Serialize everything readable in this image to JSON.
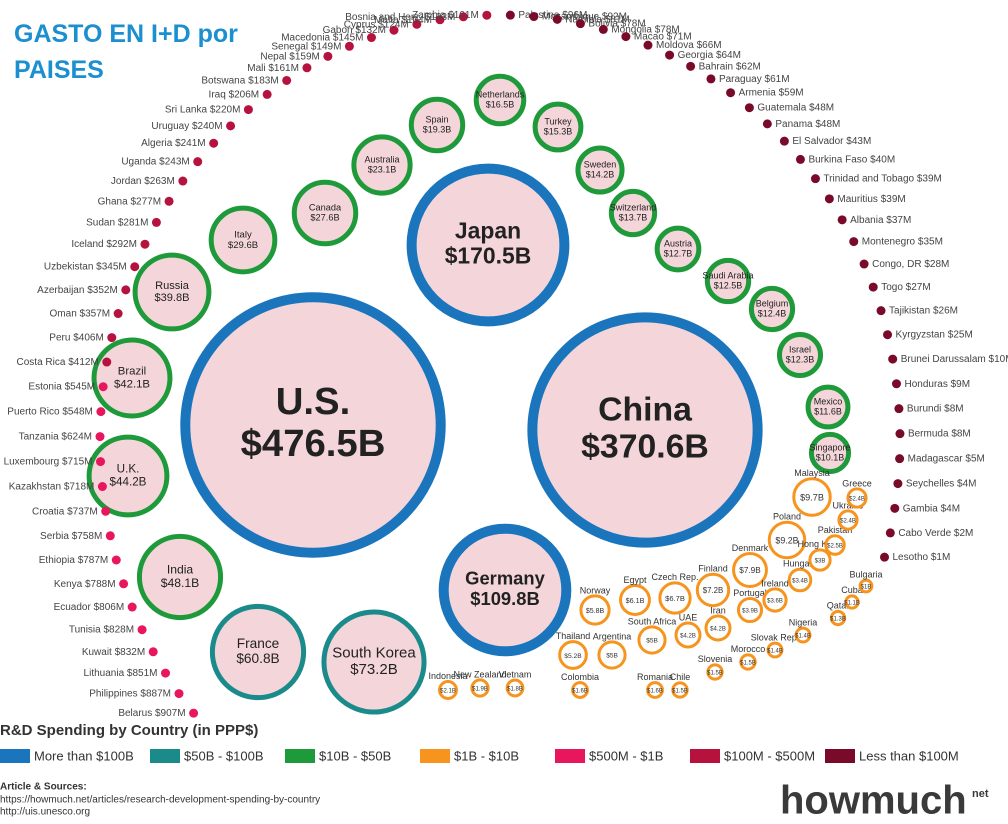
{
  "header": {
    "title": "GASTO EN I+D por PAISES"
  },
  "chart_data": {
    "type": "bubble",
    "title": "R&D Spending by Country (in PPP$)",
    "series": [
      {
        "name": "More than $100B",
        "color": "#1b75bc",
        "categories": [
          "U.S.",
          "China",
          "Japan",
          "Germany"
        ],
        "values": [
          476500,
          370600,
          170500,
          109800
        ],
        "value_labels": [
          "$476.5B",
          "$370.6B",
          "$170.5B",
          "$109.8B"
        ]
      },
      {
        "name": "$50B - $100B",
        "color": "#1a8a8a",
        "categories": [
          "South Korea",
          "France"
        ],
        "values": [
          73200,
          60800
        ],
        "value_labels": [
          "$73.2B",
          "$60.8B"
        ]
      },
      {
        "name": "$10B - $50B",
        "color": "#1f9a3a",
        "categories": [
          "India",
          "U.K.",
          "Brazil",
          "Russia",
          "Italy",
          "Canada",
          "Australia",
          "Spain",
          "Netherlands",
          "Turkey",
          "Sweden",
          "Switzerland",
          "Austria",
          "Saudi Arabia",
          "Belgium",
          "Israel",
          "Mexico",
          "Singapore"
        ],
        "values": [
          48100,
          44200,
          42100,
          39800,
          29600,
          27600,
          23100,
          19300,
          16500,
          15300,
          14200,
          13700,
          12700,
          12500,
          12400,
          12300,
          11600,
          10100
        ],
        "value_labels": [
          "$48.1B",
          "$44.2B",
          "$42.1B",
          "$39.8B",
          "$29.6B",
          "$27.6B",
          "$23.1B",
          "$19.3B",
          "$16.5B",
          "$15.3B",
          "$14.2B",
          "$13.7B",
          "$12.7B",
          "$12.5B",
          "$12.4B",
          "$12.3B",
          "$11.6B",
          "$10.1B"
        ]
      },
      {
        "name": "$1B - $10B",
        "color": "#f7941d",
        "categories": [
          "Malaysia",
          "Poland",
          "Denmark",
          "Finland",
          "Czech Rep.",
          "Egypt",
          "Norway",
          "Thailand",
          "Argentina",
          "South Africa",
          "UAE",
          "Iran",
          "Portugal",
          "Ireland",
          "Hungary",
          "Hong Kong",
          "Pakistan",
          "Ukraine",
          "Greece",
          "Indonesia",
          "New Zealand",
          "Vietnam",
          "Colombia",
          "Romania",
          "Chile",
          "Slovenia",
          "Morocco",
          "Slovak Rep.",
          "Nigeria",
          "Qatar",
          "Cuba",
          "Bulgaria"
        ],
        "values": [
          9700,
          9200,
          7900,
          7200,
          6700,
          6100,
          5800,
          5200,
          5000,
          5000,
          4200,
          4200,
          3900,
          3600,
          3400,
          3000,
          2500,
          2400,
          2400,
          2100,
          1900,
          1800,
          1600,
          1600,
          1500,
          1500,
          1500,
          1400,
          1400,
          1300,
          1100,
          1000
        ],
        "value_labels": [
          "$9.7B",
          "$9.2B",
          "$7.9B",
          "$7.2B",
          "$6.7B",
          "$6.1B",
          "$5.8B",
          "$5.2B",
          "$5B",
          "$5B",
          "$4.2B",
          "$4.2B",
          "$3.9B",
          "$3.6B",
          "$3.4B",
          "$3B",
          "$2.5B",
          "$2.4B",
          "$2.4B",
          "$2.1B",
          "$1.9B",
          "$1.8B",
          "$1.6B",
          "$1.6B",
          "$1.5B",
          "$1.5B",
          "$1.5B",
          "$1.4B",
          "$1.4B",
          "$1.3B",
          "$1.1B",
          "$1B"
        ]
      },
      {
        "name": "$500M - $1B",
        "color": "#e8175d",
        "categories": [
          "Belarus",
          "Philippines",
          "Lithuania",
          "Kuwait",
          "Tunisia",
          "Ecuador",
          "Kenya",
          "Ethiopia",
          "Serbia",
          "Croatia",
          "Kazakhstan",
          "Luxembourg",
          "Tanzania",
          "Puerto Rico",
          "Estonia"
        ],
        "values": [
          907,
          887,
          851,
          832,
          828,
          806,
          788,
          787,
          758,
          737,
          718,
          715,
          624,
          548,
          545
        ],
        "value_labels": [
          "$907M",
          "$887M",
          "$851M",
          "$832M",
          "$828M",
          "$806M",
          "$788M",
          "$787M",
          "$758M",
          "$737M",
          "$718M",
          "$715M",
          "$624M",
          "$548M",
          "$545M"
        ]
      },
      {
        "name": "$100M - $500M",
        "color": "#b5123e",
        "categories": [
          "Costa Rica",
          "Peru",
          "Oman",
          "Azerbaijan",
          "Uzbekistan",
          "Iceland",
          "Sudan",
          "Ghana",
          "Jordan",
          "Uganda",
          "Algeria",
          "Uruguay",
          "Sri Lanka",
          "Iraq",
          "Botswana",
          "Mali",
          "Nepal",
          "Senegal",
          "Macedonia",
          "Gabon",
          "Cyprus",
          "Malta",
          "Bosnia and Herz.",
          "Zambia"
        ],
        "values": [
          412,
          406,
          357,
          352,
          345,
          292,
          281,
          277,
          263,
          243,
          241,
          240,
          220,
          206,
          183,
          161,
          159,
          149,
          145,
          132,
          124,
          104,
          103,
          101
        ],
        "value_labels": [
          "$412M",
          "$406M",
          "$357M",
          "$352M",
          "$345M",
          "$292M",
          "$281M",
          "$277M",
          "$263M",
          "$243M",
          "$241M",
          "$240M",
          "$220M",
          "$206M",
          "$183M",
          "$161M",
          "$159M",
          "$149M",
          "$145M",
          "$132M",
          "$124M",
          "$104M",
          "$103M",
          "$101M"
        ]
      },
      {
        "name": "Less than $100M",
        "color": "#7a0a2a",
        "categories": [
          "Palestine",
          "Mozambique",
          "Namibia",
          "Bolivia",
          "Mongolia",
          "Macao",
          "Moldova",
          "Georgia",
          "Bahrain",
          "Paraguay",
          "Armenia",
          "Guatemala",
          "Panama",
          "El Salvador",
          "Burkina Faso",
          "Trinidad and Tobago",
          "Mauritius",
          "Albania",
          "Montenegro",
          "Congo, DR",
          "Togo",
          "Tajikistan",
          "Kyrgyzstan",
          "Brunei Darussalam",
          "Honduras",
          "Burundi",
          "Bermuda",
          "Madagascar",
          "Seychelles",
          "Gambia",
          "Cabo Verde",
          "Lesotho"
        ],
        "values": [
          96,
          92,
          81,
          78,
          78,
          71,
          66,
          64,
          62,
          61,
          59,
          48,
          48,
          43,
          40,
          39,
          39,
          37,
          35,
          28,
          27,
          26,
          25,
          10,
          9,
          8,
          8,
          5,
          4,
          4,
          2,
          1
        ],
        "value_labels": [
          "$96M",
          "$92M",
          "$81M",
          "$78M",
          "$78M",
          "$71M",
          "$66M",
          "$64M",
          "$62M",
          "$61M",
          "$59M",
          "$48M",
          "$48M",
          "$43M",
          "$40M",
          "$39M",
          "$39M",
          "$37M",
          "$35M",
          "$28M",
          "$27M",
          "$26M",
          "$25M",
          "$10M",
          "$9M",
          "$8M",
          "$8M",
          "$5M",
          "$4M",
          "$4M",
          "$2M",
          "$1M"
        ]
      }
    ]
  },
  "footer": {
    "sources_label": "Article & Sources:",
    "sources": [
      "https://howmuch.net/articles/research-development-spending-by-country",
      "http://uis.unesco.org"
    ],
    "logo": "howmuch",
    "logo_suffix": "net"
  }
}
